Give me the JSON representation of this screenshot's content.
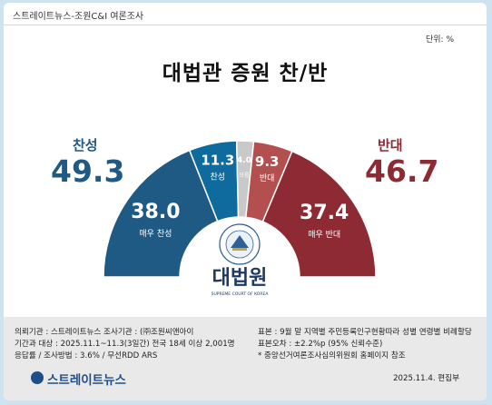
{
  "header": {
    "source_tag": "스트레이트뉴스-조원C&I 여론조사",
    "unit": "단위: %",
    "title": "대법관 증원 찬/반"
  },
  "summary": {
    "support_label": "찬성",
    "support_value": "49.3",
    "support_color": "#1e5a83",
    "oppose_label": "반대",
    "oppose_value": "46.7",
    "oppose_color": "#8e2a34"
  },
  "emblem": {
    "name": "대법원",
    "sub": "SUPREME COURT OF KOREA",
    "ring_text": "SUPREME COURT OF KOREA"
  },
  "chart_data": {
    "type": "pie",
    "title": "대법관 증원 찬/반",
    "unit": "%",
    "slices": [
      {
        "label": "매우 찬성",
        "value": 38.0,
        "color": "#1e5a83"
      },
      {
        "label": "찬성",
        "value": 11.3,
        "color": "#0f6b9e"
      },
      {
        "label": "모름",
        "value": 4.0,
        "color": "#c9c9c9"
      },
      {
        "label": "반대",
        "value": 9.3,
        "color": "#b3504f"
      },
      {
        "label": "매우 반대",
        "value": 37.4,
        "color": "#8e2a34"
      }
    ],
    "value_labels": [
      "38.0",
      "11.3",
      "4.0",
      "9.3",
      "37.4"
    ],
    "totals": [
      {
        "label": "찬성",
        "value": 49.3
      },
      {
        "label": "반대",
        "value": 46.7
      }
    ]
  },
  "footer": {
    "left": [
      "의뢰기관 : 스트레이트뉴스        조사기관 : (㈜조원씨앤아이",
      "기간과 대상 : 2025.11.1~11.3(3일간)   전국 18세 이상  2,001명",
      "응답률 / 조사방법 : 3.6% / 무선RDD ARS"
    ],
    "right": [
      "표본 : 9월 말 지역별 주민등록인구현황따라 성별 연령별 비례할당",
      "표본오차 : ±2.2%p (95% 신뢰수준)",
      "* 중앙선거여론조사심의위원회 홈페이지 참조"
    ],
    "brand": "스트레이트뉴스",
    "date": "2025.11.4. 편집부"
  }
}
